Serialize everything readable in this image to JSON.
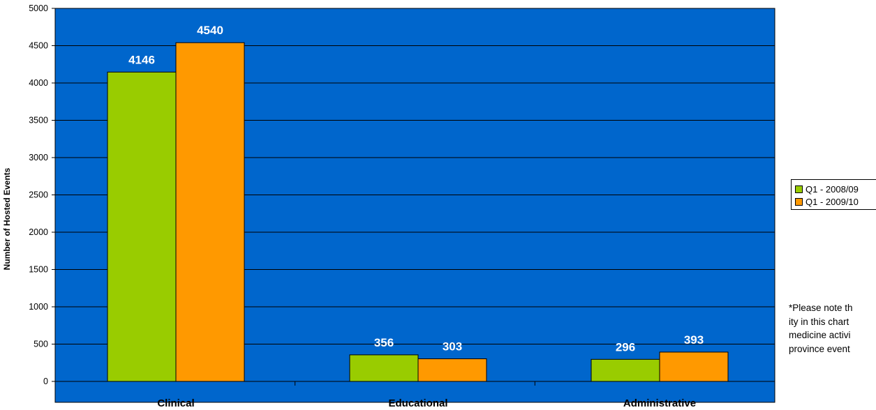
{
  "colors": {
    "plot_background": "#0066CC",
    "gridline": "#000000",
    "series_2008": "#99CC00",
    "series_2009": "#FF9900",
    "data_label": "#FFFFFF"
  },
  "legend": {
    "items": [
      {
        "label": "Q1 - 2008/09",
        "color": "#99CC00"
      },
      {
        "label": "Q1 - 2009/10",
        "color": "#FF9900"
      }
    ]
  },
  "note": {
    "lines": [
      "*Please note th",
      "ity in this chart",
      "medicine activi",
      "province event"
    ]
  },
  "chart_data": {
    "type": "bar",
    "title": "",
    "xlabel": "",
    "ylabel": "Number of Hosted Events",
    "categories": [
      "Clinical",
      "Educational",
      "Administrative"
    ],
    "series": [
      {
        "name": "Q1 - 2008/09",
        "values": [
          4146,
          356,
          296
        ]
      },
      {
        "name": "Q1 - 2009/10",
        "values": [
          4540,
          303,
          393
        ]
      }
    ],
    "ylim": [
      0,
      5000
    ],
    "yticks": [
      0,
      500,
      1000,
      1500,
      2000,
      2500,
      3000,
      3500,
      4000,
      4500,
      5000
    ],
    "grid": true,
    "legend_position": "right"
  }
}
